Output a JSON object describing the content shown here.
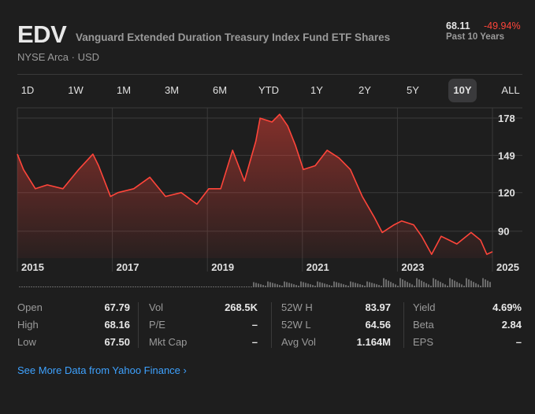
{
  "header": {
    "ticker": "EDV",
    "name": "Vanguard Extended Duration Treasury Index Fund ETF Shares",
    "exchange": "NYSE Arca · USD",
    "price": "68.11",
    "change": "-49.94%",
    "period": "Past 10 Years"
  },
  "ranges": [
    "1D",
    "1W",
    "1M",
    "3M",
    "6M",
    "YTD",
    "1Y",
    "2Y",
    "5Y",
    "10Y",
    "ALL"
  ],
  "active_range": "10Y",
  "colors": {
    "line": "#ff453a",
    "negative": "#ff453a",
    "link": "#3ea2ff"
  },
  "chart_data": {
    "type": "area",
    "x_ticks": [
      "2015",
      "2017",
      "2019",
      "2021",
      "2023",
      "2025"
    ],
    "y_ticks": [
      "178",
      "149",
      "120",
      "90"
    ],
    "y_tick_values": [
      178,
      149,
      120,
      90
    ],
    "xlim": [
      2015,
      2025
    ],
    "ylim": [
      69,
      186
    ],
    "x": [
      2015.0,
      2015.13,
      2015.38,
      2015.63,
      2015.96,
      2016.29,
      2016.59,
      2016.71,
      2016.96,
      2017.12,
      2017.45,
      2017.79,
      2018.12,
      2018.45,
      2018.78,
      2019.03,
      2019.28,
      2019.53,
      2019.78,
      2020.02,
      2020.11,
      2020.36,
      2020.52,
      2020.69,
      2020.85,
      2021.02,
      2021.27,
      2021.52,
      2021.77,
      2022.01,
      2022.26,
      2022.51,
      2022.68,
      2022.93,
      2023.09,
      2023.34,
      2023.51,
      2023.72,
      2023.92,
      2024.09,
      2024.25,
      2024.55,
      2024.75,
      2024.88,
      2025.0
    ],
    "y": [
      150,
      138,
      123,
      126,
      123,
      138,
      150,
      141,
      117,
      120,
      123,
      132,
      117,
      120,
      111,
      123,
      123,
      153,
      129,
      160,
      178,
      175,
      181,
      172,
      157,
      138,
      141,
      153,
      147,
      138,
      117,
      101,
      89,
      95,
      98,
      95,
      86,
      72,
      86,
      83,
      80,
      89,
      83,
      72,
      74
    ]
  },
  "stats": [
    [
      {
        "label": "Open",
        "value": "67.79"
      },
      {
        "label": "High",
        "value": "68.16"
      },
      {
        "label": "Low",
        "value": "67.50"
      }
    ],
    [
      {
        "label": "Vol",
        "value": "268.5K"
      },
      {
        "label": "P/E",
        "value": "–"
      },
      {
        "label": "Mkt Cap",
        "value": "–"
      }
    ],
    [
      {
        "label": "52W H",
        "value": "83.97"
      },
      {
        "label": "52W L",
        "value": "64.56"
      },
      {
        "label": "Avg Vol",
        "value": "1.164M"
      }
    ],
    [
      {
        "label": "Yield",
        "value": "4.69%"
      },
      {
        "label": "Beta",
        "value": "2.84"
      },
      {
        "label": "EPS",
        "value": "–"
      }
    ]
  ],
  "link": "See More Data from Yahoo Finance ›"
}
